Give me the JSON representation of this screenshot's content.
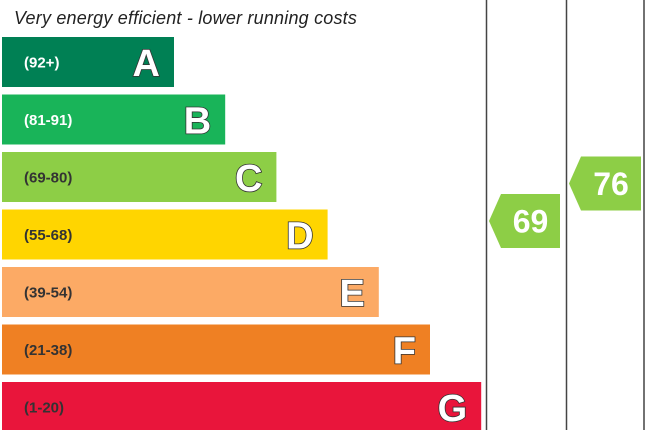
{
  "header": {
    "efficient_note": "Very energy efficient - lower running costs"
  },
  "chart_data": {
    "type": "bar",
    "bands": [
      {
        "letter": "A",
        "range": "(92+)",
        "min": 92,
        "max": 100,
        "color": "#008054",
        "range_text_color": "#ffffff"
      },
      {
        "letter": "B",
        "range": "(81-91)",
        "min": 81,
        "max": 91,
        "color": "#19b459",
        "range_text_color": "#ffffff"
      },
      {
        "letter": "C",
        "range": "(69-80)",
        "min": 69,
        "max": 80,
        "color": "#8dce46",
        "range_text_color": "#333333"
      },
      {
        "letter": "D",
        "range": "(55-68)",
        "min": 55,
        "max": 68,
        "color": "#ffd500",
        "range_text_color": "#333333"
      },
      {
        "letter": "E",
        "range": "(39-54)",
        "min": 39,
        "max": 54,
        "color": "#fcaa65",
        "range_text_color": "#333333"
      },
      {
        "letter": "F",
        "range": "(21-38)",
        "min": 21,
        "max": 38,
        "color": "#ef8023",
        "range_text_color": "#333333"
      },
      {
        "letter": "G",
        "range": "(1-20)",
        "min": 1,
        "max": 20,
        "color": "#e9153b",
        "range_text_color": "#333333"
      }
    ],
    "current_rating": {
      "value": 69,
      "band": "C",
      "color": "#8dce46"
    },
    "potential_rating": {
      "value": 76,
      "band": "C",
      "color": "#8dce46"
    }
  }
}
